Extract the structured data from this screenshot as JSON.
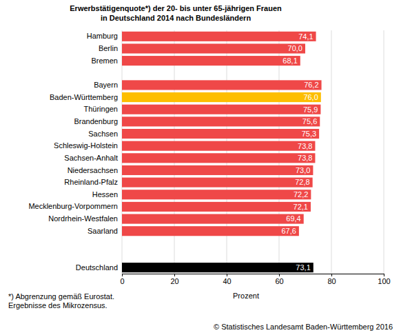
{
  "chart_data": {
    "type": "bar",
    "orientation": "horizontal",
    "title": [
      "Erwerbstätigenquote*) der 20- bis unter 65-jährigen Frauen",
      "in Deutschland 2014 nach Bundesländern"
    ],
    "categories": [
      "Hamburg",
      "Berlin",
      "Bremen",
      null,
      "Bayern",
      "Baden-Württemberg",
      "Thüringen",
      "Brandenburg",
      "Sachsen",
      "Schleswig-Holstein",
      "Sachsen-Anhalt",
      "Niedersachsen",
      "Rheinland-Pfalz",
      "Hessen",
      "Mecklenburg-Vorpommern",
      "Nordrhein-Westfalen",
      "Saarland",
      null,
      null,
      "Deutschland"
    ],
    "values": [
      74.1,
      70.0,
      68.1,
      null,
      76.2,
      76.0,
      75.9,
      75.6,
      75.3,
      73.8,
      73.8,
      73.0,
      72.8,
      72.2,
      72.1,
      69.4,
      67.6,
      null,
      null,
      73.1
    ],
    "value_labels": [
      "74,1",
      "70,0",
      "68,1",
      null,
      "76,2",
      "76,0",
      "75,9",
      "75,6",
      "75,3",
      "73,8",
      "73,8",
      "73,0",
      "72,8",
      "72,2",
      "72,1",
      "69,4",
      "67,6",
      null,
      null,
      "73,1"
    ],
    "colors": [
      "#ef4848",
      "#ef4848",
      "#ef4848",
      null,
      "#ef4848",
      "#fdbe00",
      "#ef4848",
      "#ef4848",
      "#ef4848",
      "#ef4848",
      "#ef4848",
      "#ef4848",
      "#ef4848",
      "#ef4848",
      "#ef4848",
      "#ef4848",
      "#ef4848",
      null,
      null,
      "#000000"
    ],
    "data_labels": true,
    "xlabel": "Prozent",
    "xlim": [
      0,
      100
    ],
    "xticks": [
      0,
      20,
      40,
      60,
      80,
      100
    ],
    "grid": true,
    "notes": [
      "*) Abgrenzung gemäß Eurostat.",
      "Ergebnisse des Mikrozensus."
    ],
    "source": "© Statistisches Landesamt Baden-Württemberg 2016"
  }
}
